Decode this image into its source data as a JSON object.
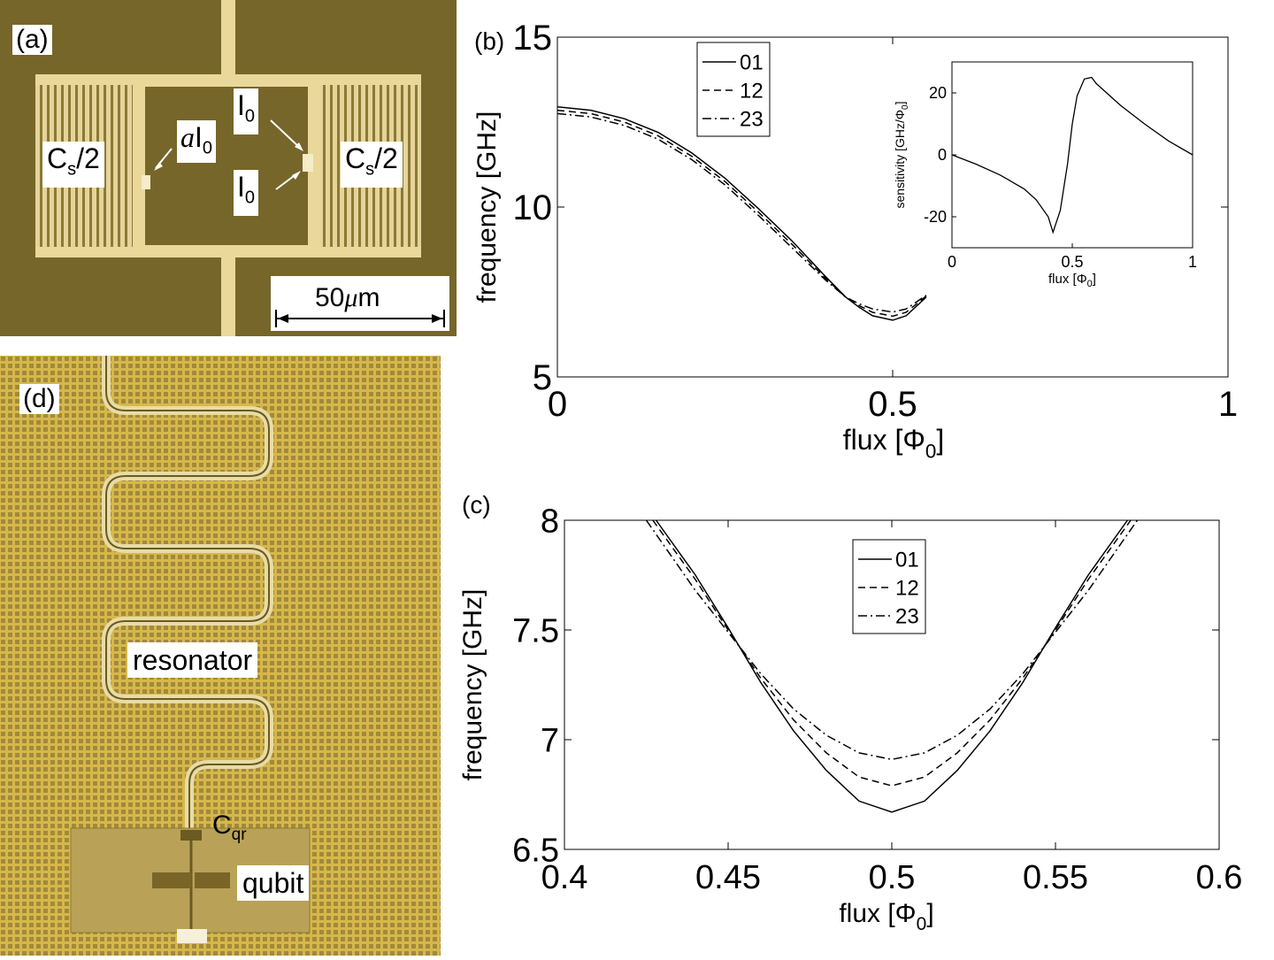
{
  "panel_a": {
    "tag": "(a)",
    "cap_left_main": "C",
    "cap_left_sub": "s",
    "cap_left_tail": "/2",
    "cap_right_main": "C",
    "cap_right_sub": "s",
    "cap_right_tail": "/2",
    "alpha": "a",
    "i_main": "I",
    "i_sub": "0",
    "scale_bar": "50",
    "scale_unit_mu": "μ",
    "scale_unit_m": "m"
  },
  "panel_d": {
    "tag": "(d)",
    "resonator": "resonator",
    "cqr_main": "C",
    "cqr_sub": "qr",
    "qubit": "qubit"
  },
  "chart_data": [
    {
      "id": "b",
      "panel": "(b)",
      "type": "line",
      "xlabel": "flux [Φ",
      "xlabel_sub": "0",
      "xlabel_tail": "]",
      "ylabel": "frequency [GHz]",
      "xlim": [
        0,
        1
      ],
      "ylim": [
        5,
        15
      ],
      "xticks": [
        "0",
        "0.5",
        "1"
      ],
      "yticks": [
        "5",
        "10",
        "15"
      ],
      "legend": [
        "01",
        "12",
        "23"
      ],
      "series": [
        {
          "name": "01",
          "x": [
            0,
            0.05,
            0.1,
            0.15,
            0.2,
            0.25,
            0.3,
            0.35,
            0.4,
            0.43,
            0.45,
            0.47,
            0.5,
            0.52,
            0.55
          ],
          "y": [
            12.95,
            12.85,
            12.6,
            12.2,
            11.6,
            10.85,
            9.95,
            9.0,
            7.95,
            7.35,
            7.05,
            6.8,
            6.67,
            6.8,
            7.35
          ]
        },
        {
          "name": "12",
          "x": [
            0,
            0.05,
            0.1,
            0.15,
            0.2,
            0.25,
            0.3,
            0.35,
            0.4,
            0.43,
            0.45,
            0.47,
            0.5,
            0.52,
            0.55
          ],
          "y": [
            12.85,
            12.75,
            12.5,
            12.1,
            11.5,
            10.75,
            9.85,
            8.9,
            7.9,
            7.35,
            7.1,
            6.9,
            6.79,
            6.9,
            7.38
          ]
        },
        {
          "name": "23",
          "x": [
            0,
            0.05,
            0.1,
            0.15,
            0.2,
            0.25,
            0.3,
            0.35,
            0.4,
            0.43,
            0.45,
            0.47,
            0.5,
            0.52,
            0.55
          ],
          "y": [
            12.75,
            12.65,
            12.4,
            12.0,
            11.4,
            10.65,
            9.75,
            8.8,
            7.85,
            7.35,
            7.15,
            7.0,
            6.91,
            7.0,
            7.4
          ]
        }
      ],
      "inset": {
        "xlabel": "flux [Φ",
        "xlabel_sub": "0",
        "xlabel_tail": "]",
        "ylabel": "sensitivity [GHz/Φ",
        "ylabel_sub": "0",
        "ylabel_tail": "]",
        "xlim": [
          0,
          1
        ],
        "ylim": [
          -30,
          30
        ],
        "xticks": [
          "0",
          "0.5",
          "1"
        ],
        "yticks": [
          "-20",
          "0",
          "20"
        ],
        "x": [
          0,
          0.1,
          0.2,
          0.3,
          0.35,
          0.4,
          0.42,
          0.45,
          0.48,
          0.5,
          0.52,
          0.55,
          0.58,
          0.6,
          0.7,
          0.8,
          0.9,
          1.0
        ],
        "y": [
          0,
          -3,
          -6.5,
          -11,
          -14.5,
          -20,
          -25,
          -18,
          -3,
          10,
          19,
          24.5,
          25,
          23,
          16,
          10,
          4.5,
          0
        ]
      }
    },
    {
      "id": "c",
      "panel": "(c)",
      "type": "line",
      "xlabel": "flux [Φ",
      "xlabel_sub": "0",
      "xlabel_tail": "]",
      "ylabel": "frequency [GHz]",
      "xlim": [
        0.4,
        0.6
      ],
      "ylim": [
        6.5,
        8
      ],
      "xticks": [
        "0.4",
        "0.45",
        "0.5",
        "0.55",
        "0.6"
      ],
      "yticks": [
        "6.5",
        "7",
        "7.5",
        "8"
      ],
      "legend": [
        "01",
        "12",
        "23"
      ],
      "series": [
        {
          "name": "01",
          "x": [
            0.428,
            0.44,
            0.45,
            0.46,
            0.47,
            0.48,
            0.49,
            0.5,
            0.51,
            0.52,
            0.53,
            0.54,
            0.55,
            0.56,
            0.572
          ],
          "y": [
            8.0,
            7.75,
            7.51,
            7.26,
            7.04,
            6.86,
            6.72,
            6.67,
            6.72,
            6.86,
            7.04,
            7.26,
            7.51,
            7.75,
            8.0
          ]
        },
        {
          "name": "12",
          "x": [
            0.427,
            0.44,
            0.45,
            0.46,
            0.47,
            0.48,
            0.49,
            0.5,
            0.51,
            0.52,
            0.53,
            0.54,
            0.55,
            0.56,
            0.573
          ],
          "y": [
            8.0,
            7.73,
            7.5,
            7.28,
            7.09,
            6.94,
            6.83,
            6.79,
            6.83,
            6.94,
            7.09,
            7.28,
            7.5,
            7.73,
            8.0
          ]
        },
        {
          "name": "23",
          "x": [
            0.425,
            0.44,
            0.45,
            0.46,
            0.47,
            0.48,
            0.49,
            0.5,
            0.51,
            0.52,
            0.53,
            0.54,
            0.55,
            0.56,
            0.575
          ],
          "y": [
            8.0,
            7.68,
            7.49,
            7.3,
            7.14,
            7.02,
            6.94,
            6.91,
            6.94,
            7.02,
            7.14,
            7.3,
            7.49,
            7.68,
            8.0
          ]
        }
      ]
    }
  ]
}
